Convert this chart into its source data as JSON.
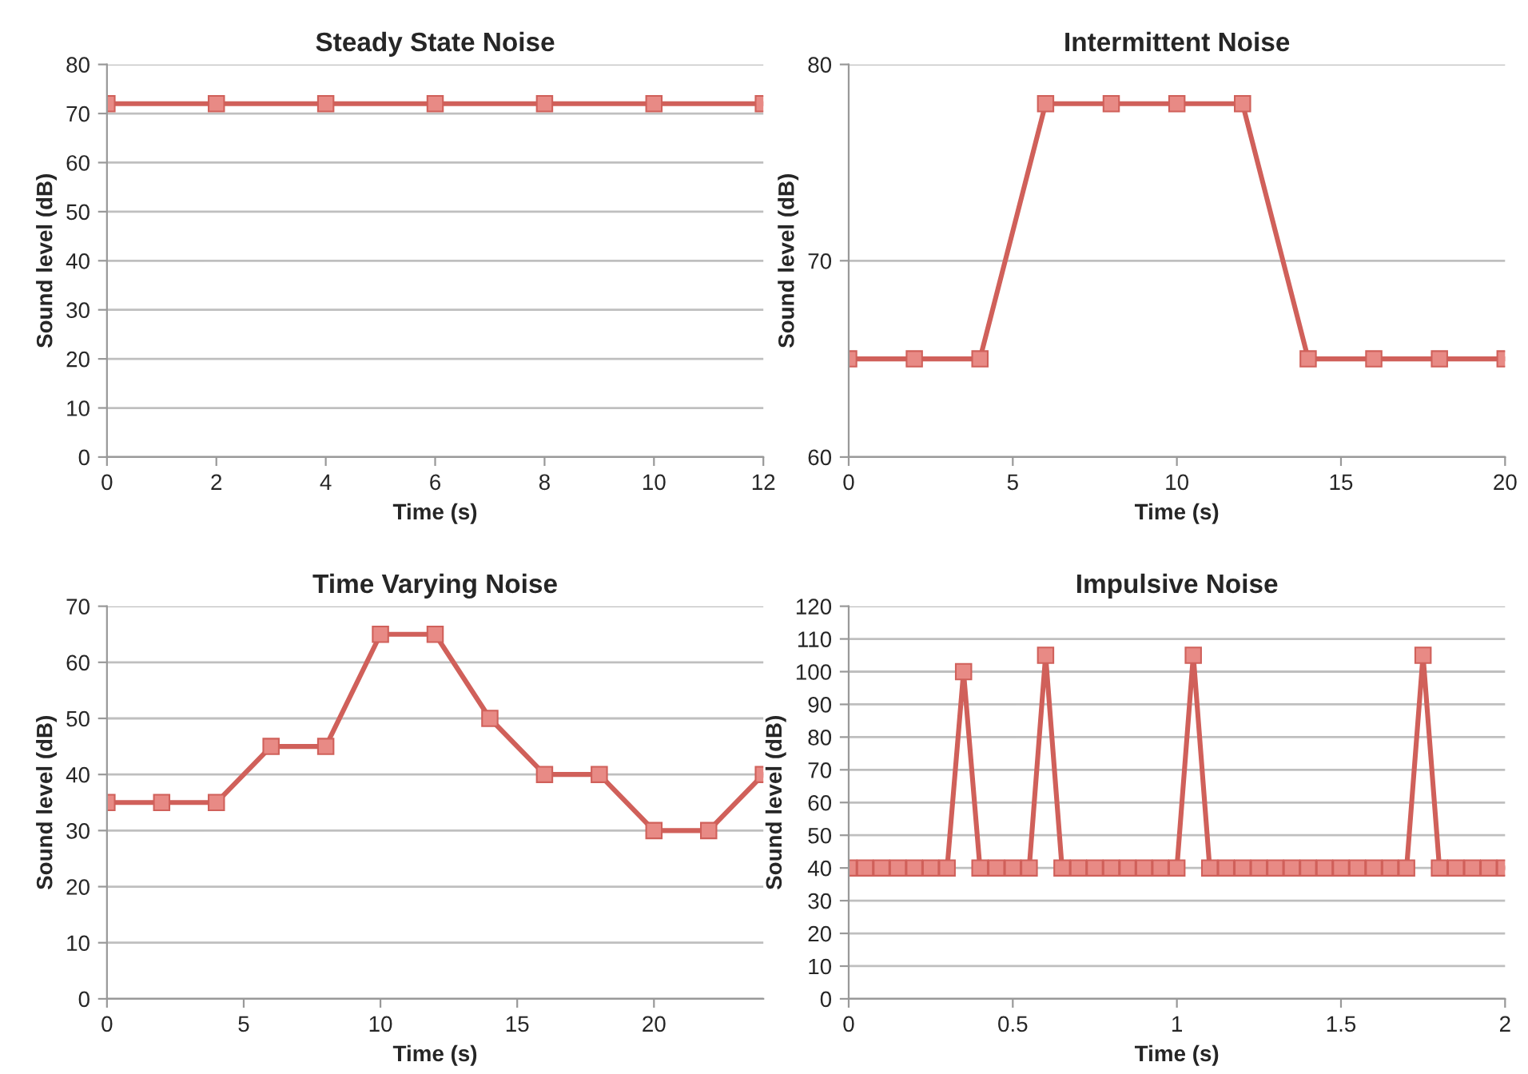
{
  "chart_data": [
    {
      "type": "line",
      "title": "Steady State Noise",
      "xlabel": "Time (s)",
      "ylabel": "Sound level (dB)",
      "x": [
        0,
        2,
        4,
        6,
        8,
        10,
        12
      ],
      "series": [
        {
          "color": "#d0605a",
          "values": [
            72,
            72,
            72,
            72,
            72,
            72,
            72
          ]
        }
      ],
      "xlim": [
        0,
        12
      ],
      "xticks": [
        0,
        2,
        4,
        6,
        8,
        10,
        12
      ],
      "ylim": [
        0,
        80
      ],
      "yticks": [
        0,
        10,
        20,
        30,
        40,
        50,
        60,
        70,
        80
      ],
      "grid": "y",
      "marker": "square",
      "line_style": "solid"
    },
    {
      "type": "line",
      "title": "Intermittent Noise",
      "xlabel": "Time (s)",
      "ylabel": "Sound level (dB)",
      "x": [
        0,
        2,
        4,
        6,
        8,
        10,
        12,
        14,
        16,
        18,
        20
      ],
      "series": [
        {
          "color": "#d0605a",
          "values": [
            65,
            65,
            65,
            78,
            78,
            78,
            78,
            65,
            65,
            65,
            65
          ]
        }
      ],
      "xlim": [
        0,
        20
      ],
      "xticks": [
        0,
        5,
        10,
        15,
        20
      ],
      "ylim": [
        60,
        80
      ],
      "yticks": [
        60,
        70,
        80
      ],
      "grid": "y",
      "marker": "square",
      "line_style": "solid"
    },
    {
      "type": "line",
      "title": "Time Varying Noise",
      "xlabel": "Time (s)",
      "ylabel": "Sound level (dB)",
      "x": [
        0,
        2,
        4,
        6,
        8,
        10,
        12,
        14,
        16,
        18,
        20,
        22,
        24
      ],
      "series": [
        {
          "color": "#d0605a",
          "values": [
            35,
            35,
            35,
            45,
            45,
            65,
            65,
            50,
            40,
            40,
            30,
            30,
            40
          ]
        }
      ],
      "xlim": [
        0,
        24
      ],
      "xticks": [
        0,
        5,
        10,
        15,
        20
      ],
      "ylim": [
        0,
        70
      ],
      "yticks": [
        0,
        10,
        20,
        30,
        40,
        50,
        60,
        70
      ],
      "grid": "y",
      "marker": "square",
      "line_style": "solid"
    },
    {
      "type": "line",
      "title": "Impulsive Noise",
      "xlabel": "Time (s)",
      "ylabel": "Sound level (dB)",
      "x": [
        0,
        0.05,
        0.1,
        0.15,
        0.2,
        0.25,
        0.3,
        0.35,
        0.4,
        0.45,
        0.5,
        0.55,
        0.6,
        0.65,
        0.7,
        0.75,
        0.8,
        0.85,
        0.9,
        0.95,
        1.0,
        1.05,
        1.1,
        1.15,
        1.2,
        1.25,
        1.3,
        1.35,
        1.4,
        1.45,
        1.5,
        1.55,
        1.6,
        1.65,
        1.7,
        1.75,
        1.8,
        1.85,
        1.9,
        1.95,
        2.0
      ],
      "series": [
        {
          "color": "#d0605a",
          "values": [
            40,
            40,
            40,
            40,
            40,
            40,
            40,
            100,
            40,
            40,
            40,
            40,
            105,
            40,
            40,
            40,
            40,
            40,
            40,
            40,
            40,
            105,
            40,
            40,
            40,
            40,
            40,
            40,
            40,
            40,
            40,
            40,
            40,
            40,
            40,
            105,
            40,
            40,
            40,
            40,
            40
          ]
        }
      ],
      "xlim": [
        0,
        2
      ],
      "xticks": [
        0,
        0.5,
        1,
        1.5,
        2
      ],
      "ylim": [
        0,
        120
      ],
      "yticks": [
        0,
        10,
        20,
        30,
        40,
        50,
        60,
        70,
        80,
        90,
        100,
        110,
        120
      ],
      "grid": "y",
      "marker": "square",
      "line_style": "solid"
    }
  ]
}
